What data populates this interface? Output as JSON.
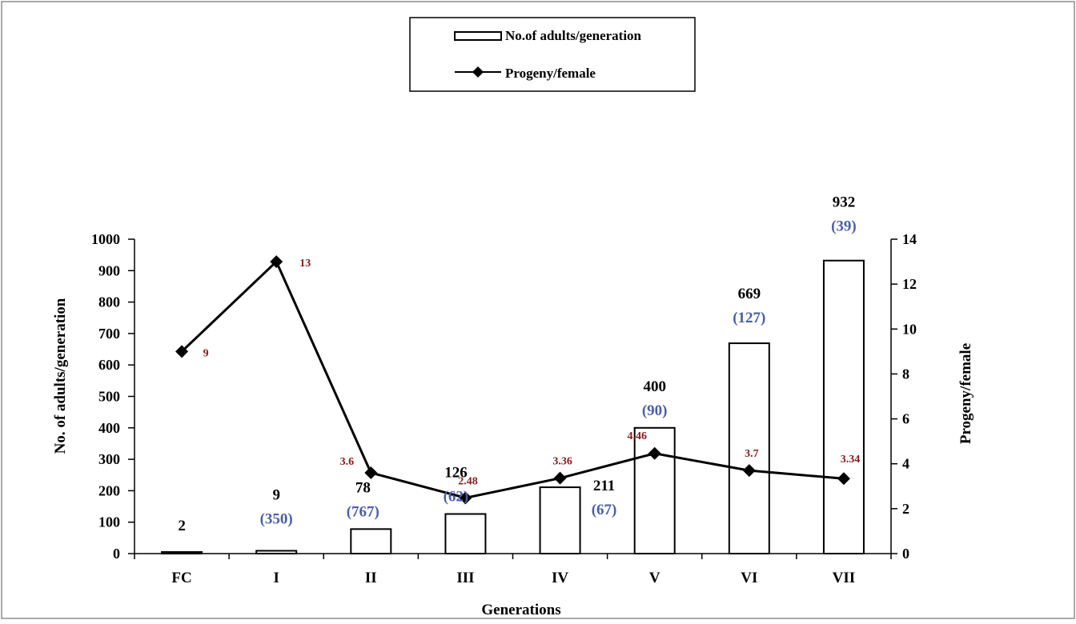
{
  "chart_data": {
    "type": "bar",
    "xlabel": "Generations",
    "ylabel": "No. of adults/generation",
    "y2label": "Progeny/female",
    "categories": [
      "FC",
      "I",
      "II",
      "III",
      "IV",
      "V",
      "VI",
      "VII"
    ],
    "ylim": [
      0,
      1000
    ],
    "y2lim": [
      0,
      14
    ],
    "yticks": [
      "0",
      "100",
      "200",
      "300",
      "400",
      "500",
      "600",
      "700",
      "800",
      "900",
      "1000"
    ],
    "y2ticks": [
      "0",
      "2",
      "4",
      "6",
      "8",
      "10",
      "12",
      "14"
    ],
    "series": [
      {
        "name": "No.of adults/generation",
        "type": "bar",
        "axis": "left",
        "values": [
          2,
          9,
          78,
          126,
          211,
          400,
          669,
          932
        ],
        "labels": [
          "2",
          "9",
          "78",
          "126",
          "211",
          "400",
          "669",
          "932"
        ],
        "secondary_labels": [
          "",
          "(350)",
          "(767)",
          "(62)",
          "(67)",
          "(90)",
          "(127)",
          "(39)"
        ],
        "color": "#000000",
        "secondary_label_color": "#4a5ea8"
      },
      {
        "name": "Progeny/female",
        "type": "line",
        "axis": "right",
        "marker": "diamond",
        "values": [
          9,
          13,
          3.6,
          2.48,
          3.36,
          4.46,
          3.7,
          3.34
        ],
        "labels": [
          "9",
          "13",
          "3.6",
          "2.48",
          "3.36",
          "4.46",
          "3.7",
          "3.34"
        ],
        "color": "#000000",
        "label_color": "#8b1a1a"
      }
    ],
    "legend": {
      "placement": "top-center",
      "entries": [
        "No.of adults/generation",
        "Progeny/female"
      ]
    },
    "grid": false
  }
}
